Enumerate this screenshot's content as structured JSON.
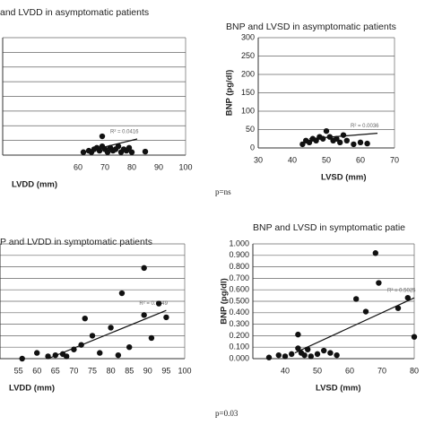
{
  "chart_data": [
    {
      "type": "scatter",
      "title": "and LVDD in asymptomatic patients",
      "x_label": "LVDD  (mm)",
      "annotation": "R² = 0.0416",
      "footnote": "p=ns",
      "color": "#111",
      "x": [
        62,
        64,
        65,
        66,
        67,
        68,
        69,
        69,
        70,
        71,
        72,
        73,
        74,
        75,
        76,
        77,
        78,
        79,
        80,
        85
      ],
      "values": [
        10,
        15,
        10,
        20,
        25,
        15,
        30,
        64,
        20,
        10,
        25,
        15,
        20,
        30,
        10,
        20,
        15,
        25,
        10,
        12
      ],
      "trend": {
        "x": [
          62,
          82
        ],
        "y": [
          10,
          55
        ]
      },
      "xlim": [
        32,
        100
      ],
      "xticks": [
        60,
        70,
        80,
        90,
        100
      ],
      "ylim": [
        0,
        400
      ],
      "yticks": [
        0,
        50,
        100,
        150,
        200,
        250,
        300,
        350,
        400
      ],
      "ytick_labels": false,
      "grid": true
    },
    {
      "type": "scatter",
      "title": "BNP and LVSD in asymptomatic patients",
      "y_label": "BNP (pg/dl)",
      "x_label": "LVSD   (mm)",
      "annotation": "R² = 0.0036",
      "color": "#111",
      "x": [
        43,
        44,
        45,
        46,
        47,
        48,
        49,
        50,
        51,
        52,
        53,
        54,
        55,
        56,
        58,
        60,
        62
      ],
      "values": [
        10,
        20,
        15,
        25,
        20,
        30,
        25,
        46,
        30,
        20,
        25,
        15,
        35,
        20,
        10,
        15,
        12
      ],
      "trend": {
        "x": [
          45,
          65
        ],
        "y": [
          25,
          40
        ]
      },
      "xlim": [
        30,
        70
      ],
      "xticks": [
        30,
        40,
        50,
        60,
        70
      ],
      "ylim": [
        0,
        300
      ],
      "yticks": [
        0,
        50,
        100,
        150,
        200,
        250,
        300
      ],
      "ytick_labels": true,
      "grid": true
    },
    {
      "type": "scatter",
      "title": "P and LVDD in symptomatic patients",
      "x_label": "LVDD   (mm)",
      "annotation": "R² = 0.3849",
      "footnote": "p=0.03",
      "color": "#111",
      "x": [
        56,
        60,
        63,
        65,
        67,
        68,
        70,
        72,
        73,
        75,
        77,
        80,
        82,
        83,
        85,
        89,
        89,
        91,
        93,
        95
      ],
      "values": [
        0.0,
        0.05,
        0.02,
        0.03,
        0.04,
        0.02,
        0.08,
        0.12,
        0.35,
        0.2,
        0.05,
        0.27,
        0.03,
        0.57,
        0.1,
        0.79,
        0.38,
        0.18,
        0.48,
        0.36
      ],
      "trend": {
        "x": [
          63,
          95
        ],
        "y": [
          0,
          0.42
        ]
      },
      "xlim": [
        50,
        100
      ],
      "xticks": [
        55,
        60,
        65,
        70,
        75,
        80,
        85,
        90,
        95,
        100
      ],
      "ylim": [
        0,
        1
      ],
      "yticks": [
        0,
        0.1,
        0.2,
        0.3,
        0.4,
        0.5,
        0.6,
        0.7,
        0.8,
        0.9,
        1
      ],
      "ytick_labels": false,
      "grid": true
    },
    {
      "type": "scatter",
      "title": "BNP and LVSD in symptomatic patie",
      "y_label": "BNP (pg/dl)",
      "x_label": "LVSD  (mm)",
      "annotation": "R² = 0.5025",
      "color": "#111",
      "x": [
        35,
        38,
        40,
        42,
        44,
        44,
        45,
        46,
        47,
        48,
        50,
        52,
        54,
        56,
        62,
        65,
        68,
        69,
        75,
        78,
        80
      ],
      "values": [
        0.01,
        0.03,
        0.02,
        0.04,
        0.09,
        0.21,
        0.05,
        0.03,
        0.08,
        0.02,
        0.04,
        0.07,
        0.05,
        0.03,
        0.52,
        0.41,
        0.92,
        0.66,
        0.44,
        0.53,
        0.19
      ],
      "trend": {
        "x": [
          43,
          80
        ],
        "y": [
          0.05,
          0.53
        ]
      },
      "xlim": [
        30,
        80
      ],
      "xticks": [
        40,
        50,
        60,
        70,
        80
      ],
      "ylim": [
        0,
        1
      ],
      "yticks": [
        {
          "value": 0,
          "label": "0.000"
        },
        {
          "value": 0.1,
          "label": "0.100"
        },
        {
          "value": 0.2,
          "label": "0.200"
        },
        {
          "value": 0.3,
          "label": "0.300"
        },
        {
          "value": 0.4,
          "label": "0.400"
        },
        {
          "value": 0.5,
          "label": "0.500"
        },
        {
          "value": 0.6,
          "label": "0.600"
        },
        {
          "value": 0.7,
          "label": "0.700"
        },
        {
          "value": 0.8,
          "label": "0.800"
        },
        {
          "value": 0.9,
          "label": "0.900"
        },
        {
          "value": 1,
          "label": "1.000"
        }
      ],
      "ytick_labels": true,
      "grid": true
    }
  ]
}
